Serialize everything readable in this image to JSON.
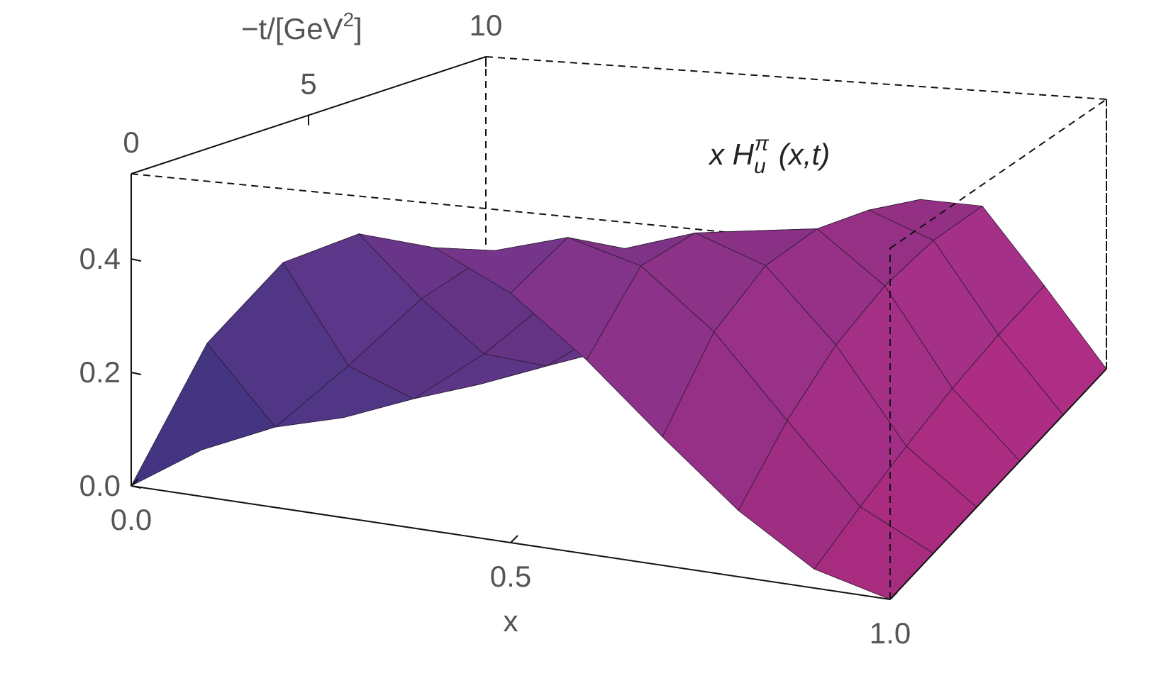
{
  "chart_data": {
    "type": "surface",
    "label": {
      "base": "x H",
      "sub": "u",
      "sup": "π",
      "args": "(x,t)"
    },
    "xlabel": "x",
    "tlabel": {
      "pre": "−t/[GeV",
      "sup": "2",
      "post": "]"
    },
    "x": [
      0,
      0.1,
      0.2,
      0.3,
      0.4,
      0.5,
      0.6,
      0.7,
      0.8,
      0.9,
      1
    ],
    "t": [
      0,
      2,
      4,
      6,
      8,
      10
    ],
    "z": [
      [
        0,
        0.268,
        0.423,
        0.486,
        0.476,
        0.414,
        0.318,
        0.208,
        0.106,
        0.03,
        0
      ],
      [
        0,
        0.06,
        0.188,
        0.323,
        0.422,
        0.458,
        0.422,
        0.323,
        0.188,
        0.06,
        0
      ],
      [
        0,
        0.01,
        0.063,
        0.163,
        0.284,
        0.385,
        0.426,
        0.38,
        0.253,
        0.09,
        0
      ],
      [
        0,
        0.002,
        0.019,
        0.071,
        0.165,
        0.281,
        0.372,
        0.388,
        0.294,
        0.118,
        0
      ],
      [
        0,
        0,
        0.005,
        0.028,
        0.088,
        0.186,
        0.297,
        0.361,
        0.313,
        0.141,
        0
      ],
      [
        0,
        0,
        0.001,
        0.011,
        0.044,
        0.116,
        0.221,
        0.314,
        0.311,
        0.158,
        0
      ]
    ],
    "xlim": [
      0,
      1
    ],
    "tlim": [
      0,
      10
    ],
    "zlim": [
      0,
      0.55
    ],
    "xticks": [
      {
        "value": 0,
        "label": "0.0"
      },
      0.5,
      {
        "value": 1,
        "label": "1.0"
      }
    ],
    "tticks": [
      0,
      5,
      10
    ],
    "zticks": [
      {
        "value": 0,
        "label": "0.0"
      },
      0.2,
      0.4
    ],
    "colormap": [
      "#4a3a8e",
      "#b02a7c"
    ]
  }
}
